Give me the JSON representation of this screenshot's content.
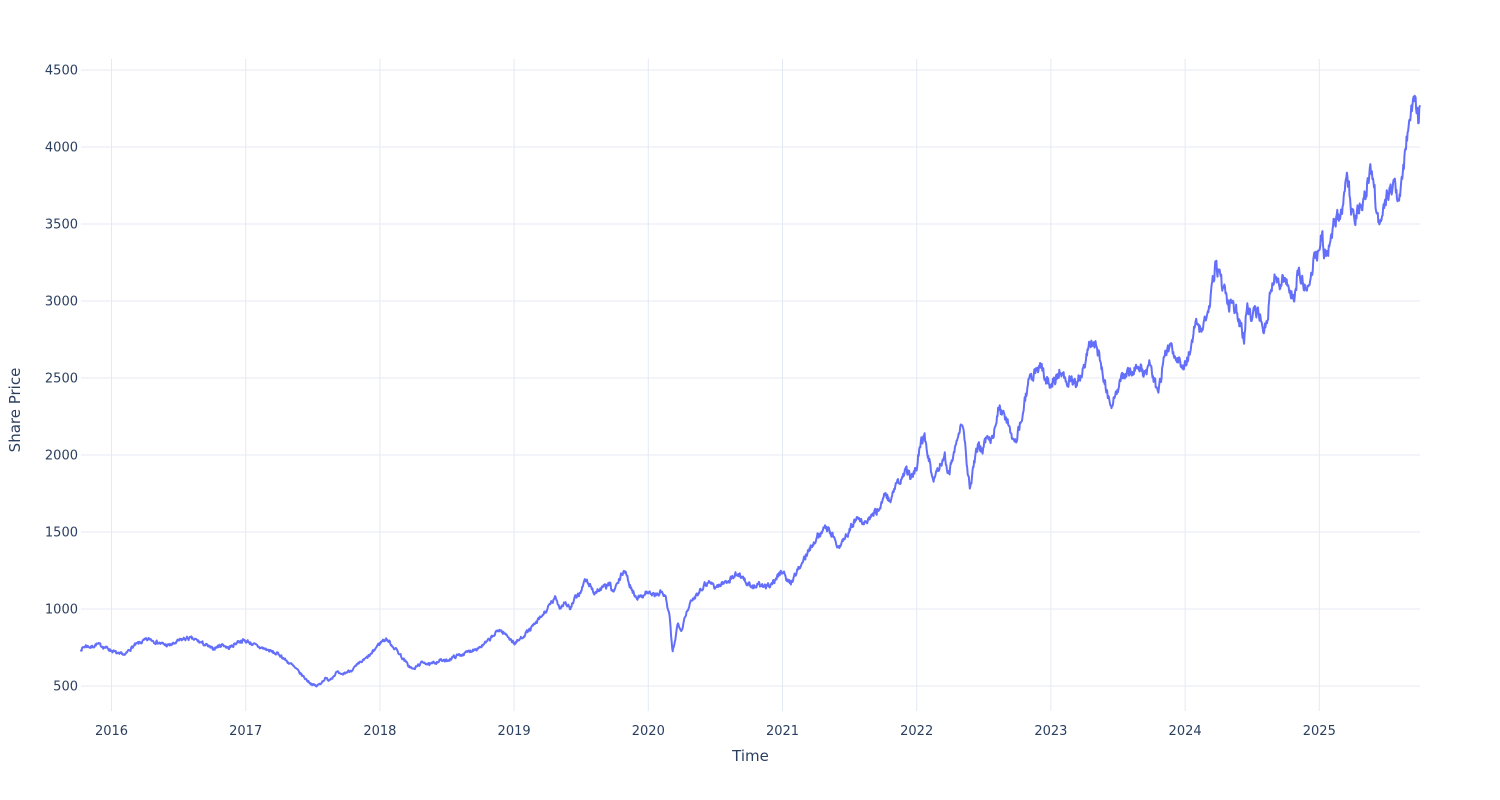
{
  "figure": {
    "background": "#ffffff"
  },
  "chart_data": {
    "type": "line",
    "title": "",
    "xlabel": "Time",
    "ylabel": "Share Price",
    "x_ticks": [
      2016,
      2017,
      2018,
      2019,
      2020,
      2021,
      2022,
      2023,
      2024,
      2025
    ],
    "x_tick_labels": [
      "2016",
      "2017",
      "2018",
      "2019",
      "2020",
      "2021",
      "2022",
      "2023",
      "2024",
      "2025"
    ],
    "y_ticks": [
      500,
      1000,
      1500,
      2000,
      2500,
      3000,
      3500,
      4000,
      4500
    ],
    "y_tick_labels": [
      "500",
      "1000",
      "1500",
      "2000",
      "2500",
      "3000",
      "3500",
      "4000",
      "4500"
    ],
    "x_range": [
      2015.773,
      2025.751
    ],
    "y_range": [
      338,
      4571
    ],
    "grid": true,
    "legend": false,
    "colors": {
      "line": "#636efa",
      "grid": "#e5e9f3",
      "text": "#2a3f5f",
      "plot_bg": "#ffffff"
    },
    "style": {
      "line_width": 2,
      "points_per_year": 252,
      "daily_jitter": 0.013
    },
    "series": [
      {
        "name": "Share Price",
        "x": [
          2015.77,
          2015.81,
          2015.85,
          2015.89,
          2015.93,
          2015.97,
          2016.02,
          2016.06,
          2016.08,
          2016.1,
          2016.13,
          2016.17,
          2016.21,
          2016.25,
          2016.29,
          2016.33,
          2016.37,
          2016.42,
          2016.46,
          2016.5,
          2016.54,
          2016.58,
          2016.63,
          2016.67,
          2016.71,
          2016.75,
          2016.79,
          2016.83,
          2016.87,
          2016.9,
          2016.94,
          2016.98,
          2017.02,
          2017.06,
          2017.1,
          2017.14,
          2017.18,
          2017.22,
          2017.26,
          2017.3,
          2017.34,
          2017.38,
          2017.42,
          2017.46,
          2017.5,
          2017.53,
          2017.56,
          2017.59,
          2017.62,
          2017.65,
          2017.68,
          2017.71,
          2017.74,
          2017.78,
          2017.82,
          2017.86,
          2017.9,
          2017.94,
          2017.98,
          2018.02,
          2018.05,
          2018.09,
          2018.13,
          2018.17,
          2018.21,
          2018.25,
          2018.29,
          2018.33,
          2018.37,
          2018.41,
          2018.45,
          2018.49,
          2018.53,
          2018.57,
          2018.61,
          2018.65,
          2018.69,
          2018.73,
          2018.77,
          2018.81,
          2018.85,
          2018.89,
          2018.92,
          2018.96,
          2019.0,
          2019.04,
          2019.08,
          2019.12,
          2019.16,
          2019.2,
          2019.24,
          2019.28,
          2019.31,
          2019.34,
          2019.38,
          2019.42,
          2019.45,
          2019.49,
          2019.53,
          2019.57,
          2019.6,
          2019.64,
          2019.68,
          2019.71,
          2019.74,
          2019.78,
          2019.82,
          2019.86,
          2019.9,
          2019.94,
          2019.98,
          2020.02,
          2020.06,
          2020.1,
          2020.13,
          2020.16,
          2020.18,
          2020.2,
          2020.22,
          2020.25,
          2020.27,
          2020.3,
          2020.34,
          2020.38,
          2020.42,
          2020.46,
          2020.5,
          2020.54,
          2020.58,
          2020.62,
          2020.66,
          2020.7,
          2020.74,
          2020.78,
          2020.82,
          2020.86,
          2020.9,
          2020.94,
          2020.98,
          2021.01,
          2021.03,
          2021.06,
          2021.1,
          2021.14,
          2021.18,
          2021.22,
          2021.26,
          2021.3,
          2021.34,
          2021.38,
          2021.41,
          2021.45,
          2021.49,
          2021.53,
          2021.56,
          2021.6,
          2021.64,
          2021.68,
          2021.72,
          2021.76,
          2021.8,
          2021.84,
          2021.88,
          2021.92,
          2021.96,
          2022.0,
          2022.03,
          2022.06,
          2022.09,
          2022.12,
          2022.15,
          2022.18,
          2022.21,
          2022.24,
          2022.27,
          2022.3,
          2022.33,
          2022.36,
          2022.38,
          2022.4,
          2022.43,
          2022.46,
          2022.49,
          2022.52,
          2022.55,
          2022.58,
          2022.61,
          2022.64,
          2022.67,
          2022.7,
          2022.73,
          2022.76,
          2022.79,
          2022.82,
          2022.84,
          2022.87,
          2022.9,
          2022.93,
          2022.96,
          2023.0,
          2023.04,
          2023.07,
          2023.11,
          2023.15,
          2023.19,
          2023.23,
          2023.27,
          2023.3,
          2023.33,
          2023.36,
          2023.4,
          2023.43,
          2023.46,
          2023.5,
          2023.53,
          2023.57,
          2023.61,
          2023.64,
          2023.68,
          2023.71,
          2023.74,
          2023.77,
          2023.8,
          2023.83,
          2023.86,
          2023.89,
          2023.93,
          2023.97,
          2024.0,
          2024.03,
          2024.06,
          2024.09,
          2024.12,
          2024.15,
          2024.18,
          2024.21,
          2024.23,
          2024.26,
          2024.29,
          2024.32,
          2024.35,
          2024.38,
          2024.41,
          2024.44,
          2024.46,
          2024.49,
          2024.52,
          2024.55,
          2024.58,
          2024.61,
          2024.64,
          2024.67,
          2024.7,
          2024.73,
          2024.76,
          2024.79,
          2024.81,
          2024.84,
          2024.87,
          2024.9,
          2024.93,
          2024.96,
          2025.0,
          2025.02,
          2025.04,
          2025.07,
          2025.1,
          2025.13,
          2025.16,
          2025.19,
          2025.21,
          2025.24,
          2025.26,
          2025.29,
          2025.31,
          2025.34,
          2025.36,
          2025.38,
          2025.41,
          2025.43,
          2025.45,
          2025.48,
          2025.5,
          2025.53,
          2025.56,
          2025.59,
          2025.61,
          2025.63,
          2025.65,
          2025.67,
          2025.69,
          2025.71,
          2025.73,
          2025.74,
          2025.75
        ],
        "y": [
          738,
          762,
          752,
          772,
          760,
          745,
          722,
          700,
          712,
          695,
          735,
          762,
          780,
          795,
          805,
          788,
          775,
          762,
          772,
          792,
          806,
          810,
          798,
          780,
          762,
          740,
          755,
          770,
          745,
          760,
          788,
          795,
          788,
          768,
          752,
          742,
          728,
          712,
          700,
          665,
          640,
          605,
          570,
          535,
          508,
          498,
          520,
          548,
          540,
          562,
          590,
          568,
          585,
          600,
          625,
          655,
          680,
          710,
          760,
          795,
          805,
          765,
          728,
          680,
          635,
          606,
          638,
          658,
          635,
          652,
          668,
          660,
          680,
          695,
          705,
          718,
          735,
          748,
          765,
          795,
          830,
          868,
          845,
          820,
          775,
          800,
          838,
          868,
          905,
          945,
          990,
          1040,
          1072,
          1010,
          1045,
          1000,
          1060,
          1105,
          1188,
          1148,
          1105,
          1128,
          1145,
          1160,
          1108,
          1180,
          1258,
          1160,
          1090,
          1072,
          1112,
          1100,
          1088,
          1112,
          1068,
          935,
          715,
          805,
          905,
          868,
          945,
          1015,
          1070,
          1120,
          1160,
          1180,
          1140,
          1158,
          1178,
          1200,
          1228,
          1215,
          1160,
          1138,
          1162,
          1135,
          1158,
          1182,
          1230,
          1255,
          1185,
          1168,
          1232,
          1288,
          1355,
          1422,
          1472,
          1512,
          1530,
          1465,
          1400,
          1445,
          1500,
          1555,
          1592,
          1552,
          1578,
          1615,
          1655,
          1748,
          1705,
          1788,
          1832,
          1902,
          1855,
          1935,
          2092,
          2108,
          1985,
          1835,
          1902,
          1958,
          1992,
          1875,
          1990,
          2120,
          2228,
          2090,
          1880,
          1788,
          1945,
          2068,
          2030,
          2105,
          2078,
          2180,
          2312,
          2270,
          2215,
          2155,
          2095,
          2165,
          2262,
          2420,
          2552,
          2500,
          2562,
          2588,
          2478,
          2468,
          2502,
          2548,
          2478,
          2508,
          2468,
          2542,
          2655,
          2728,
          2702,
          2645,
          2485,
          2362,
          2318,
          2442,
          2492,
          2522,
          2552,
          2578,
          2548,
          2522,
          2582,
          2462,
          2428,
          2558,
          2662,
          2700,
          2642,
          2602,
          2575,
          2658,
          2788,
          2845,
          2802,
          2872,
          2992,
          3125,
          3245,
          3132,
          3062,
          2992,
          2942,
          2962,
          2852,
          2762,
          2995,
          2882,
          2922,
          2958,
          2802,
          2855,
          3092,
          3192,
          3112,
          3152,
          3112,
          3072,
          3022,
          3182,
          3122,
          3072,
          3112,
          3292,
          3345,
          3438,
          3302,
          3352,
          3478,
          3525,
          3582,
          3692,
          3818,
          3602,
          3508,
          3638,
          3592,
          3678,
          3762,
          3878,
          3712,
          3592,
          3495,
          3602,
          3655,
          3722,
          3788,
          3672,
          3782,
          3872,
          4052,
          4172,
          4242,
          4352,
          4232,
          4118,
          4288
        ]
      }
    ]
  }
}
